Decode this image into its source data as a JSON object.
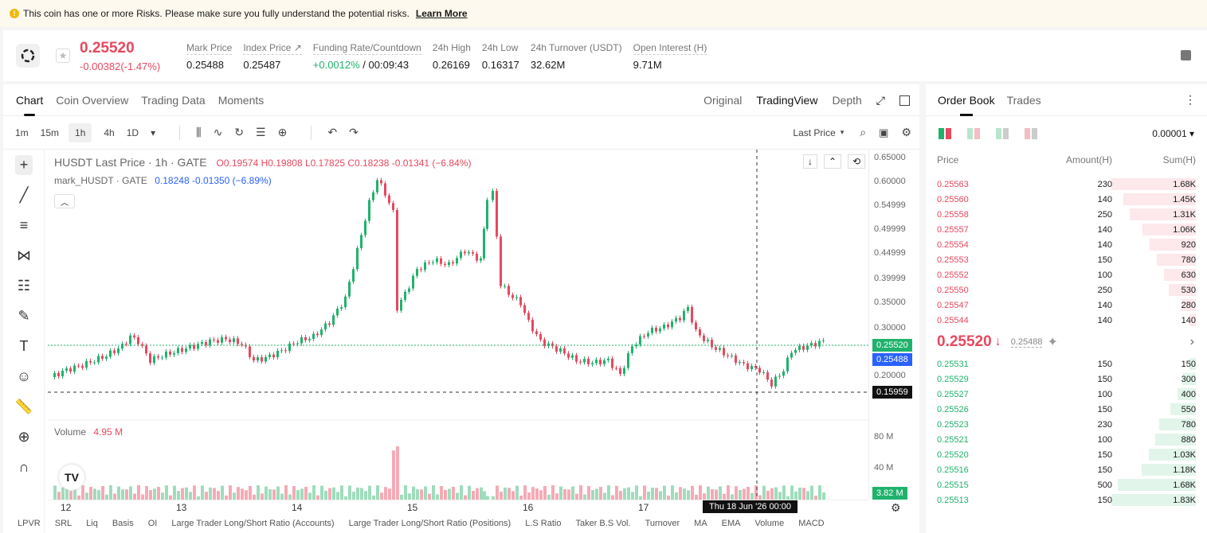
{
  "banner": {
    "text": "This coin has one or more Risks. Please make sure you fully understand the potential risks.",
    "link": "Learn More"
  },
  "ticker": {
    "price": "0.25520",
    "change": "-0.00382(-1.47%)",
    "stats": [
      {
        "label": "Mark Price",
        "value": "0.25488"
      },
      {
        "label": "Index Price ↗",
        "value": "0.25487"
      },
      {
        "label": "Funding Rate/Countdown",
        "value_green": "+0.0012%",
        "value": " / 00:09:43"
      },
      {
        "label": "24h High",
        "value": "0.26169"
      },
      {
        "label": "24h Low",
        "value": "0.16317"
      },
      {
        "label": "24h Turnover (USDT)",
        "value": "32.62M"
      },
      {
        "label": "Open Interest (H)",
        "value": "9.71M"
      }
    ]
  },
  "chart_tabs": [
    "Chart",
    "Coin Overview",
    "Trading Data",
    "Moments"
  ],
  "view_tabs": [
    "Original",
    "TradingView",
    "Depth"
  ],
  "intervals": [
    "1m",
    "15m",
    "1h",
    "4h",
    "1D"
  ],
  "last_price_label": "Last Price",
  "legend": {
    "main": "HUSDT Last Price · 1h · GATE",
    "ohlc": "O0.19574  H0.19808  L0.17825  C0.18238  -0.01341 (−6.84%)",
    "mark": "mark_HUSDT · GATE",
    "mark_vals": "0.18248  -0.01350 (−6.89%)",
    "volume_label": "Volume",
    "volume_val": "4.95 M"
  },
  "price_axis": [
    "0.65000",
    "0.60000",
    "0.54999",
    "0.49999",
    "0.44999",
    "0.39999",
    "0.35000",
    "0.30000",
    "0.20000"
  ],
  "price_tags": {
    "last": "0.25520",
    "mark": "0.25488",
    "cross": "0.15959"
  },
  "volume_axis": [
    "80 M",
    "40 M"
  ],
  "volume_tag": "3.82 M",
  "date_axis": [
    "12",
    "13",
    "14",
    "15",
    "16",
    "17"
  ],
  "crosshair_date": "Thu 18 Jun '26   00:00",
  "bottom_tabs": [
    "LPVR",
    "SRL",
    "Liq",
    "Basis",
    "OI",
    "Large Trader Long/Short Ratio (Accounts)",
    "Large Trader Long/Short Ratio (Positions)",
    "L.S Ratio",
    "Taker B.S Vol.",
    "Turnover",
    "MA",
    "EMA",
    "Volume",
    "MACD"
  ],
  "book": {
    "tabs": [
      "Order Book",
      "Trades"
    ],
    "precision": "0.00001 ▾",
    "headers": [
      "Price",
      "Amount(H)",
      "Sum(H)"
    ],
    "asks": [
      {
        "p": "0.25563",
        "a": "230",
        "s": "1.68K",
        "d": 1.0
      },
      {
        "p": "0.25560",
        "a": "140",
        "s": "1.45K",
        "d": 0.86
      },
      {
        "p": "0.25558",
        "a": "250",
        "s": "1.31K",
        "d": 0.78
      },
      {
        "p": "0.25557",
        "a": "140",
        "s": "1.06K",
        "d": 0.63
      },
      {
        "p": "0.25554",
        "a": "140",
        "s": "920",
        "d": 0.55
      },
      {
        "p": "0.25553",
        "a": "150",
        "s": "780",
        "d": 0.46
      },
      {
        "p": "0.25552",
        "a": "100",
        "s": "630",
        "d": 0.38
      },
      {
        "p": "0.25550",
        "a": "250",
        "s": "530",
        "d": 0.32
      },
      {
        "p": "0.25547",
        "a": "140",
        "s": "280",
        "d": 0.17
      },
      {
        "p": "0.25544",
        "a": "140",
        "s": "140",
        "d": 0.08
      }
    ],
    "mid_price": "0.25520",
    "mid_mark": "0.25488",
    "bids": [
      {
        "p": "0.25531",
        "a": "150",
        "s": "150",
        "d": 0.08
      },
      {
        "p": "0.25529",
        "a": "150",
        "s": "300",
        "d": 0.16
      },
      {
        "p": "0.25527",
        "a": "100",
        "s": "400",
        "d": 0.22
      },
      {
        "p": "0.25526",
        "a": "150",
        "s": "550",
        "d": 0.3
      },
      {
        "p": "0.25523",
        "a": "230",
        "s": "780",
        "d": 0.43
      },
      {
        "p": "0.25521",
        "a": "100",
        "s": "880",
        "d": 0.48
      },
      {
        "p": "0.25520",
        "a": "150",
        "s": "1.03K",
        "d": 0.56
      },
      {
        "p": "0.25516",
        "a": "150",
        "s": "1.18K",
        "d": 0.64
      },
      {
        "p": "0.25515",
        "a": "500",
        "s": "1.68K",
        "d": 0.92
      },
      {
        "p": "0.25513",
        "a": "150",
        "s": "1.83K",
        "d": 1.0
      }
    ]
  },
  "colors": {
    "up": "#20b26c",
    "down": "#e8485e"
  }
}
